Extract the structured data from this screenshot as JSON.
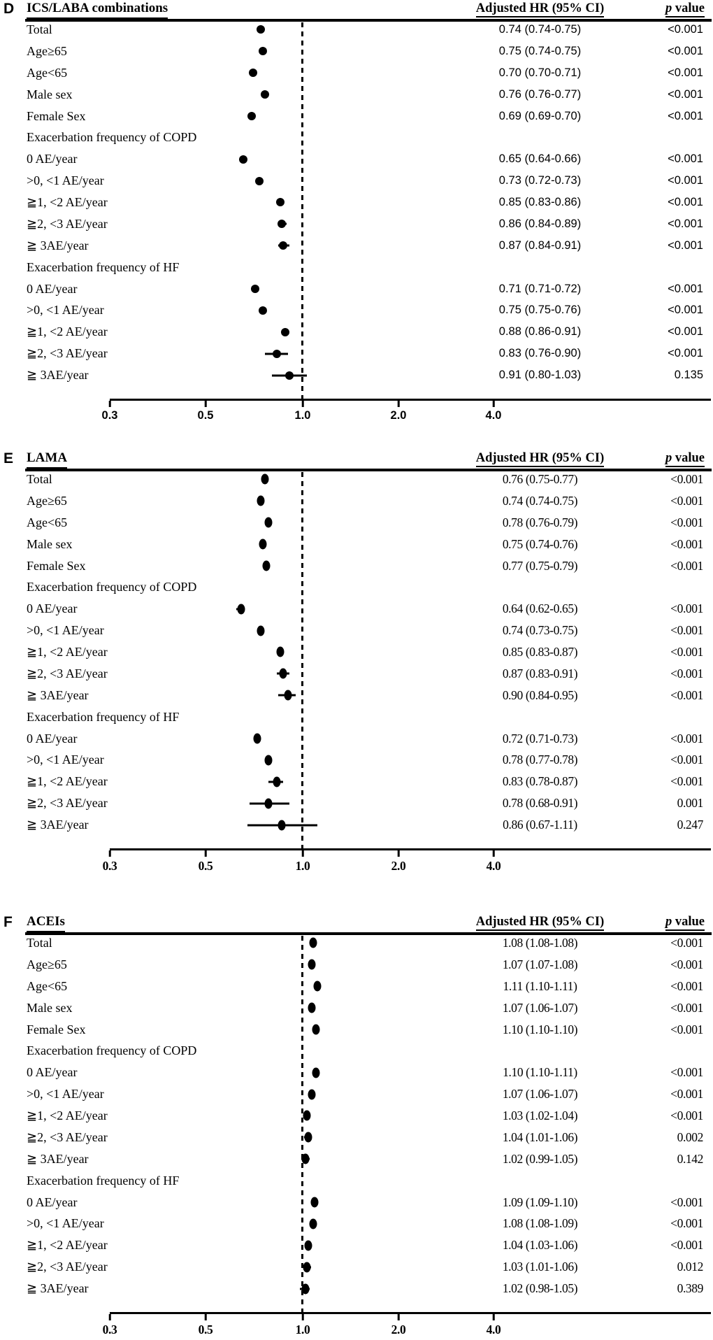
{
  "chart_data": {
    "type": "scatter",
    "variant": "forest-plot",
    "x_scale": "log",
    "x_ticks": [
      0.3,
      0.5,
      1.0,
      2.0,
      4.0
    ],
    "axis_tick_labels": [
      "0.3",
      "0.5",
      "1.0",
      "2.0",
      "4.0"
    ],
    "reference_line_x": 1.0,
    "columns": {
      "hr_header": "Adjusted HR (95% CI)",
      "p_italic": "p",
      "p_rest": " value"
    },
    "panels": [
      {
        "letter": "D",
        "title": "ICS/LABA combinations",
        "rows": [
          {
            "label": "Total",
            "hr": 0.74,
            "lo": 0.74,
            "hi": 0.75,
            "hr_text": "0.74 (0.74-0.75)",
            "p_text": "<0.001"
          },
          {
            "label": "Age≥65",
            "hr": 0.75,
            "lo": 0.74,
            "hi": 0.75,
            "hr_text": "0.75 (0.74-0.75)",
            "p_text": "<0.001"
          },
          {
            "label": "Age<65",
            "hr": 0.7,
            "lo": 0.7,
            "hi": 0.71,
            "hr_text": "0.70 (0.70-0.71)",
            "p_text": "<0.001"
          },
          {
            "label": "Male sex",
            "hr": 0.76,
            "lo": 0.76,
            "hi": 0.77,
            "hr_text": "0.76 (0.76-0.77)",
            "p_text": "<0.001"
          },
          {
            "label": "Female Sex",
            "hr": 0.69,
            "lo": 0.69,
            "hi": 0.7,
            "hr_text": "0.69 (0.69-0.70)",
            "p_text": "<0.001"
          },
          {
            "label": "Exacerbation frequency of COPD",
            "header": true
          },
          {
            "label": "0 AE/year",
            "hr": 0.65,
            "lo": 0.64,
            "hi": 0.66,
            "hr_text": "0.65 (0.64-0.66)",
            "p_text": "<0.001"
          },
          {
            "label": ">0, <1 AE/year",
            "hr": 0.73,
            "lo": 0.72,
            "hi": 0.73,
            "hr_text": "0.73 (0.72-0.73)",
            "p_text": "<0.001"
          },
          {
            "label": "≧1, <2 AE/year",
            "hr": 0.85,
            "lo": 0.83,
            "hi": 0.86,
            "hr_text": "0.85 (0.83-0.86)",
            "p_text": "<0.001"
          },
          {
            "label": "≧2, <3 AE/year",
            "hr": 0.86,
            "lo": 0.84,
            "hi": 0.89,
            "hr_text": "0.86 (0.84-0.89)",
            "p_text": "<0.001"
          },
          {
            "label": "≧ 3AE/year",
            "hr": 0.87,
            "lo": 0.84,
            "hi": 0.91,
            "hr_text": "0.87 (0.84-0.91)",
            "p_text": "<0.001"
          },
          {
            "label": "Exacerbation frequency of HF",
            "header": true
          },
          {
            "label": "0 AE/year",
            "hr": 0.71,
            "lo": 0.71,
            "hi": 0.72,
            "hr_text": "0.71 (0.71-0.72)",
            "p_text": "<0.001"
          },
          {
            "label": ">0, <1 AE/year",
            "hr": 0.75,
            "lo": 0.75,
            "hi": 0.76,
            "hr_text": "0.75 (0.75-0.76)",
            "p_text": "<0.001"
          },
          {
            "label": "≧1, <2 AE/year",
            "hr": 0.88,
            "lo": 0.86,
            "hi": 0.91,
            "hr_text": "0.88 (0.86-0.91)",
            "p_text": "<0.001"
          },
          {
            "label": "≧2, <3 AE/year",
            "hr": 0.83,
            "lo": 0.76,
            "hi": 0.9,
            "hr_text": "0.83 (0.76-0.90)",
            "p_text": "<0.001"
          },
          {
            "label": "≧ 3AE/year",
            "hr": 0.91,
            "lo": 0.8,
            "hi": 1.03,
            "hr_text": "0.91 (0.80-1.03)",
            "p_text": "0.135"
          }
        ]
      },
      {
        "letter": "E",
        "title": "LAMA",
        "rows": [
          {
            "label": "Total",
            "hr": 0.76,
            "lo": 0.75,
            "hi": 0.77,
            "hr_text": "0.76 (0.75-0.77)",
            "p_text": "<0.001"
          },
          {
            "label": "Age≥65",
            "hr": 0.74,
            "lo": 0.74,
            "hi": 0.75,
            "hr_text": "0.74 (0.74-0.75)",
            "p_text": "<0.001"
          },
          {
            "label": "Age<65",
            "hr": 0.78,
            "lo": 0.76,
            "hi": 0.79,
            "hr_text": "0.78 (0.76-0.79)",
            "p_text": "<0.001"
          },
          {
            "label": "Male sex",
            "hr": 0.75,
            "lo": 0.74,
            "hi": 0.76,
            "hr_text": "0.75 (0.74-0.76)",
            "p_text": "<0.001"
          },
          {
            "label": "Female Sex",
            "hr": 0.77,
            "lo": 0.75,
            "hi": 0.79,
            "hr_text": "0.77 (0.75-0.79)",
            "p_text": "<0.001"
          },
          {
            "label": "Exacerbation frequency of COPD",
            "header": true
          },
          {
            "label": "0 AE/year",
            "hr": 0.64,
            "lo": 0.62,
            "hi": 0.65,
            "hr_text": "0.64 (0.62-0.65)",
            "p_text": "<0.001"
          },
          {
            "label": ">0, <1 AE/year",
            "hr": 0.74,
            "lo": 0.73,
            "hi": 0.75,
            "hr_text": "0.74 (0.73-0.75)",
            "p_text": "<0.001"
          },
          {
            "label": "≧1, <2 AE/year",
            "hr": 0.85,
            "lo": 0.83,
            "hi": 0.87,
            "hr_text": "0.85 (0.83-0.87)",
            "p_text": "<0.001"
          },
          {
            "label": "≧2, <3 AE/year",
            "hr": 0.87,
            "lo": 0.83,
            "hi": 0.91,
            "hr_text": "0.87 (0.83-0.91)",
            "p_text": "<0.001"
          },
          {
            "label": "≧ 3AE/year",
            "hr": 0.9,
            "lo": 0.84,
            "hi": 0.95,
            "hr_text": "0.90 (0.84-0.95)",
            "p_text": "<0.001"
          },
          {
            "label": "Exacerbation frequency of HF",
            "header": true
          },
          {
            "label": "0 AE/year",
            "hr": 0.72,
            "lo": 0.71,
            "hi": 0.73,
            "hr_text": "0.72 (0.71-0.73)",
            "p_text": "<0.001"
          },
          {
            "label": ">0, <1 AE/year",
            "hr": 0.78,
            "lo": 0.77,
            "hi": 0.78,
            "hr_text": "0.78 (0.77-0.78)",
            "p_text": "<0.001"
          },
          {
            "label": "≧1, <2 AE/year",
            "hr": 0.83,
            "lo": 0.78,
            "hi": 0.87,
            "hr_text": "0.83 (0.78-0.87)",
            "p_text": "<0.001"
          },
          {
            "label": "≧2, <3 AE/year",
            "hr": 0.78,
            "lo": 0.68,
            "hi": 0.91,
            "hr_text": "0.78 (0.68-0.91)",
            "p_text": "0.001"
          },
          {
            "label": "≧ 3AE/year",
            "hr": 0.86,
            "lo": 0.67,
            "hi": 1.11,
            "hr_text": "0.86 (0.67-1.11)",
            "p_text": "0.247"
          }
        ]
      },
      {
        "letter": "F",
        "title": "ACEIs",
        "rows": [
          {
            "label": "Total",
            "hr": 1.08,
            "lo": 1.08,
            "hi": 1.08,
            "hr_text": "1.08 (1.08-1.08)",
            "p_text": "<0.001"
          },
          {
            "label": "Age≥65",
            "hr": 1.07,
            "lo": 1.07,
            "hi": 1.08,
            "hr_text": "1.07 (1.07-1.08)",
            "p_text": "<0.001"
          },
          {
            "label": "Age<65",
            "hr": 1.11,
            "lo": 1.1,
            "hi": 1.11,
            "hr_text": "1.11 (1.10-1.11)",
            "p_text": "<0.001"
          },
          {
            "label": "Male sex",
            "hr": 1.07,
            "lo": 1.06,
            "hi": 1.07,
            "hr_text": "1.07 (1.06-1.07)",
            "p_text": "<0.001"
          },
          {
            "label": "Female Sex",
            "hr": 1.1,
            "lo": 1.1,
            "hi": 1.1,
            "hr_text": "1.10 (1.10-1.10)",
            "p_text": "<0.001"
          },
          {
            "label": "Exacerbation frequency of COPD",
            "header": true
          },
          {
            "label": "0 AE/year",
            "hr": 1.1,
            "lo": 1.1,
            "hi": 1.11,
            "hr_text": "1.10 (1.10-1.11)",
            "p_text": "<0.001"
          },
          {
            "label": ">0, <1 AE/year",
            "hr": 1.07,
            "lo": 1.06,
            "hi": 1.07,
            "hr_text": "1.07 (1.06-1.07)",
            "p_text": "<0.001"
          },
          {
            "label": "≧1, <2 AE/year",
            "hr": 1.03,
            "lo": 1.02,
            "hi": 1.04,
            "hr_text": "1.03 (1.02-1.04)",
            "p_text": "<0.001"
          },
          {
            "label": "≧2, <3 AE/year",
            "hr": 1.04,
            "lo": 1.01,
            "hi": 1.06,
            "hr_text": "1.04 (1.01-1.06)",
            "p_text": "0.002"
          },
          {
            "label": "≧ 3AE/year",
            "hr": 1.02,
            "lo": 0.99,
            "hi": 1.05,
            "hr_text": "1.02 (0.99-1.05)",
            "p_text": "0.142"
          },
          {
            "label": "Exacerbation frequency of HF",
            "header": true
          },
          {
            "label": "0 AE/year",
            "hr": 1.09,
            "lo": 1.09,
            "hi": 1.1,
            "hr_text": "1.09 (1.09-1.10)",
            "p_text": "<0.001"
          },
          {
            "label": ">0, <1 AE/year",
            "hr": 1.08,
            "lo": 1.08,
            "hi": 1.09,
            "hr_text": "1.08 (1.08-1.09)",
            "p_text": "<0.001"
          },
          {
            "label": "≧1, <2 AE/year",
            "hr": 1.04,
            "lo": 1.03,
            "hi": 1.06,
            "hr_text": "1.04 (1.03-1.06)",
            "p_text": "<0.001"
          },
          {
            "label": "≧2, <3 AE/year",
            "hr": 1.03,
            "lo": 1.01,
            "hi": 1.06,
            "hr_text": "1.03 (1.01-1.06)",
            "p_text": "0.012"
          },
          {
            "label": "≧ 3AE/year",
            "hr": 1.02,
            "lo": 0.98,
            "hi": 1.05,
            "hr_text": "1.02 (0.98-1.05)",
            "p_text": "0.389"
          }
        ]
      }
    ]
  }
}
